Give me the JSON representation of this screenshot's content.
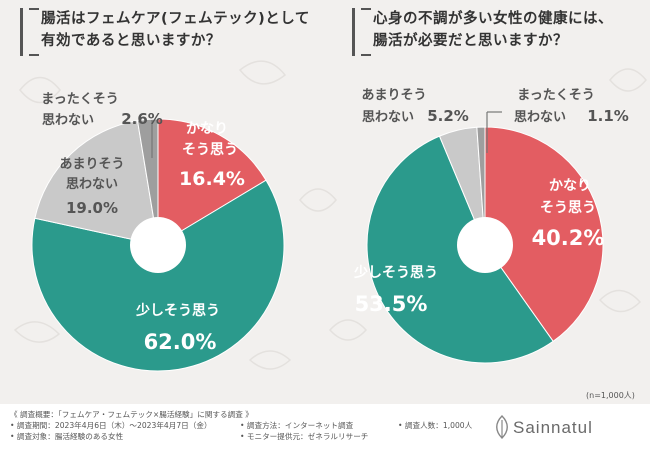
{
  "questions": {
    "q1": "腸活はフェムケア(フェムテック)として\n有効であると思いますか？",
    "q2": "心身の不調が多い女性の健康には、\n腸活が必要だと思いますか？"
  },
  "colors": {
    "strongly_agree": "#e35d62",
    "somewhat_agree": "#2b9a8c",
    "not_really": "#c9c9c9",
    "not_at_all": "#9e9e9e"
  },
  "chart_data": [
    {
      "type": "pie",
      "donut": true,
      "title": "腸活はフェムケア(フェムテック)として有効であると思いますか？",
      "unit": "%",
      "slices": [
        {
          "label": "かなりそう思う",
          "value": 16.4
        },
        {
          "label": "少しそう思う",
          "value": 62.0
        },
        {
          "label": "あまりそう思わない",
          "value": 19.0
        },
        {
          "label": "まったくそう思わない",
          "value": 2.6
        }
      ]
    },
    {
      "type": "pie",
      "donut": true,
      "title": "心身の不調が多い女性の健康には、腸活が必要だと思いますか？",
      "unit": "%",
      "slices": [
        {
          "label": "かなりそう思う",
          "value": 40.2
        },
        {
          "label": "少しそう思う",
          "value": 53.5
        },
        {
          "label": "あまりそう思わない",
          "value": 5.2
        },
        {
          "label": "まったくそう思わない",
          "value": 1.1
        }
      ]
    }
  ],
  "labels": {
    "c1": {
      "s1_a": "かなり",
      "s1_b": "そう思う",
      "s1_v": "16.4%",
      "s2_a": "少しそう思う",
      "s2_v": "62.0%",
      "s3_a": "あまりそう",
      "s3_b": "思わない",
      "s3_v": "19.0%",
      "s4_a": "まったくそう",
      "s4_b": "思わない",
      "s4_v": "2.6%"
    },
    "c2": {
      "s1_a": "かなり",
      "s1_b": "そう思う",
      "s1_v": "40.2%",
      "s2_a": "少しそう思う",
      "s2_v": "53.5%",
      "s3_a": "あまりそう",
      "s3_b": "思わない",
      "s3_v": "5.2%",
      "s4_a": "まったくそう",
      "s4_b": "思わない",
      "s4_v": "1.1%"
    }
  },
  "sample_size": "(n=1,000人)",
  "footer": {
    "overview": "《 調査概要：「フェムケア・フェムテック×腸活経験」に関する調査 》",
    "period": "• 調査期間：2023年4月6日（木）～2023年4月7日（金）",
    "method": "• 調査方法：インターネット調査",
    "count": "• 調査人数：1,000人",
    "target": "• 調査対象：腸活経験のある女性",
    "provider": "• モニター提供元：ゼネラルリサーチ",
    "brand": "Sainnatul"
  }
}
